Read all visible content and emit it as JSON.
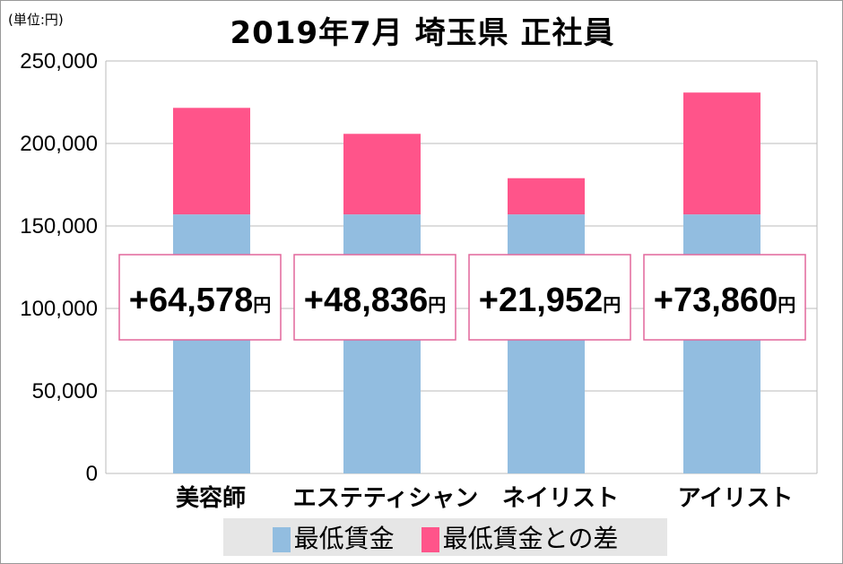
{
  "chart_data": {
    "type": "bar",
    "stacked": true,
    "title": "2019年7月 埼玉県 正社員",
    "unit_label": "(単位:円)",
    "categories": [
      "美容師",
      "エステティシャン",
      "ネイリスト",
      "アイリスト"
    ],
    "series": [
      {
        "name": "最低賃金",
        "color": "#92bde0",
        "values": [
          157000,
          157000,
          157000,
          157000
        ]
      },
      {
        "name": "最低賃金との差",
        "color": "#ff548a",
        "values": [
          64578,
          48836,
          21952,
          73860
        ]
      }
    ],
    "data_labels": [
      "+64,578",
      "+48,836",
      "+21,952",
      "+73,860"
    ],
    "data_label_suffix": "円",
    "yticks": [
      "0",
      "50,000",
      "100,000",
      "150,000",
      "200,000",
      "250,000"
    ],
    "ylim": [
      0,
      250000
    ],
    "grid": true,
    "legend": "bottom"
  }
}
